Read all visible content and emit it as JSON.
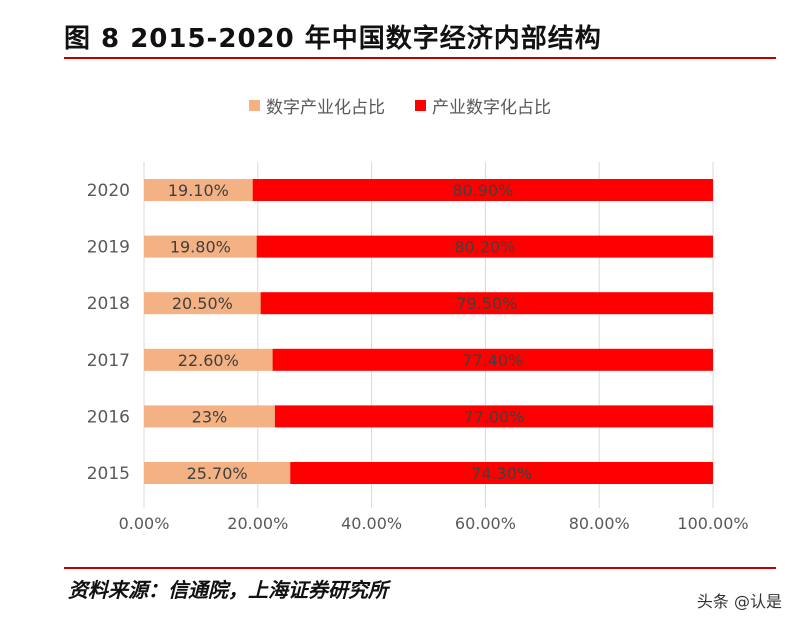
{
  "title": "图 8 2015-2020 年中国数字经济内部结构",
  "source": "资料来源：信通院，上海证券研究所",
  "watermark": "头条 @认是",
  "colors": {
    "rule": "#c00000"
  },
  "chart_data": {
    "type": "bar",
    "orientation": "horizontal",
    "stacked": true,
    "categories": [
      "2020",
      "2019",
      "2018",
      "2017",
      "2016",
      "2015"
    ],
    "series": [
      {
        "name": "数字产业化占比",
        "color": "#f4b183",
        "values": [
          19.1,
          19.8,
          20.5,
          22.6,
          23.0,
          25.7
        ],
        "labels": [
          "19.10%",
          "19.80%",
          "20.50%",
          "22.60%",
          "23%",
          "25.70%"
        ]
      },
      {
        "name": "产业数字化占比",
        "color": "#ff0000",
        "values": [
          80.9,
          80.2,
          79.5,
          77.4,
          77.0,
          74.3
        ],
        "labels": [
          "80.90%",
          "80.20%",
          "79.50%",
          "77.40%",
          "77.00%",
          "74.30%"
        ]
      }
    ],
    "xlim": [
      0,
      100
    ],
    "x_ticks": [
      "0.00%",
      "20.00%",
      "40.00%",
      "60.00%",
      "80.00%",
      "100.00%"
    ],
    "grid": true,
    "legend_position": "top"
  }
}
